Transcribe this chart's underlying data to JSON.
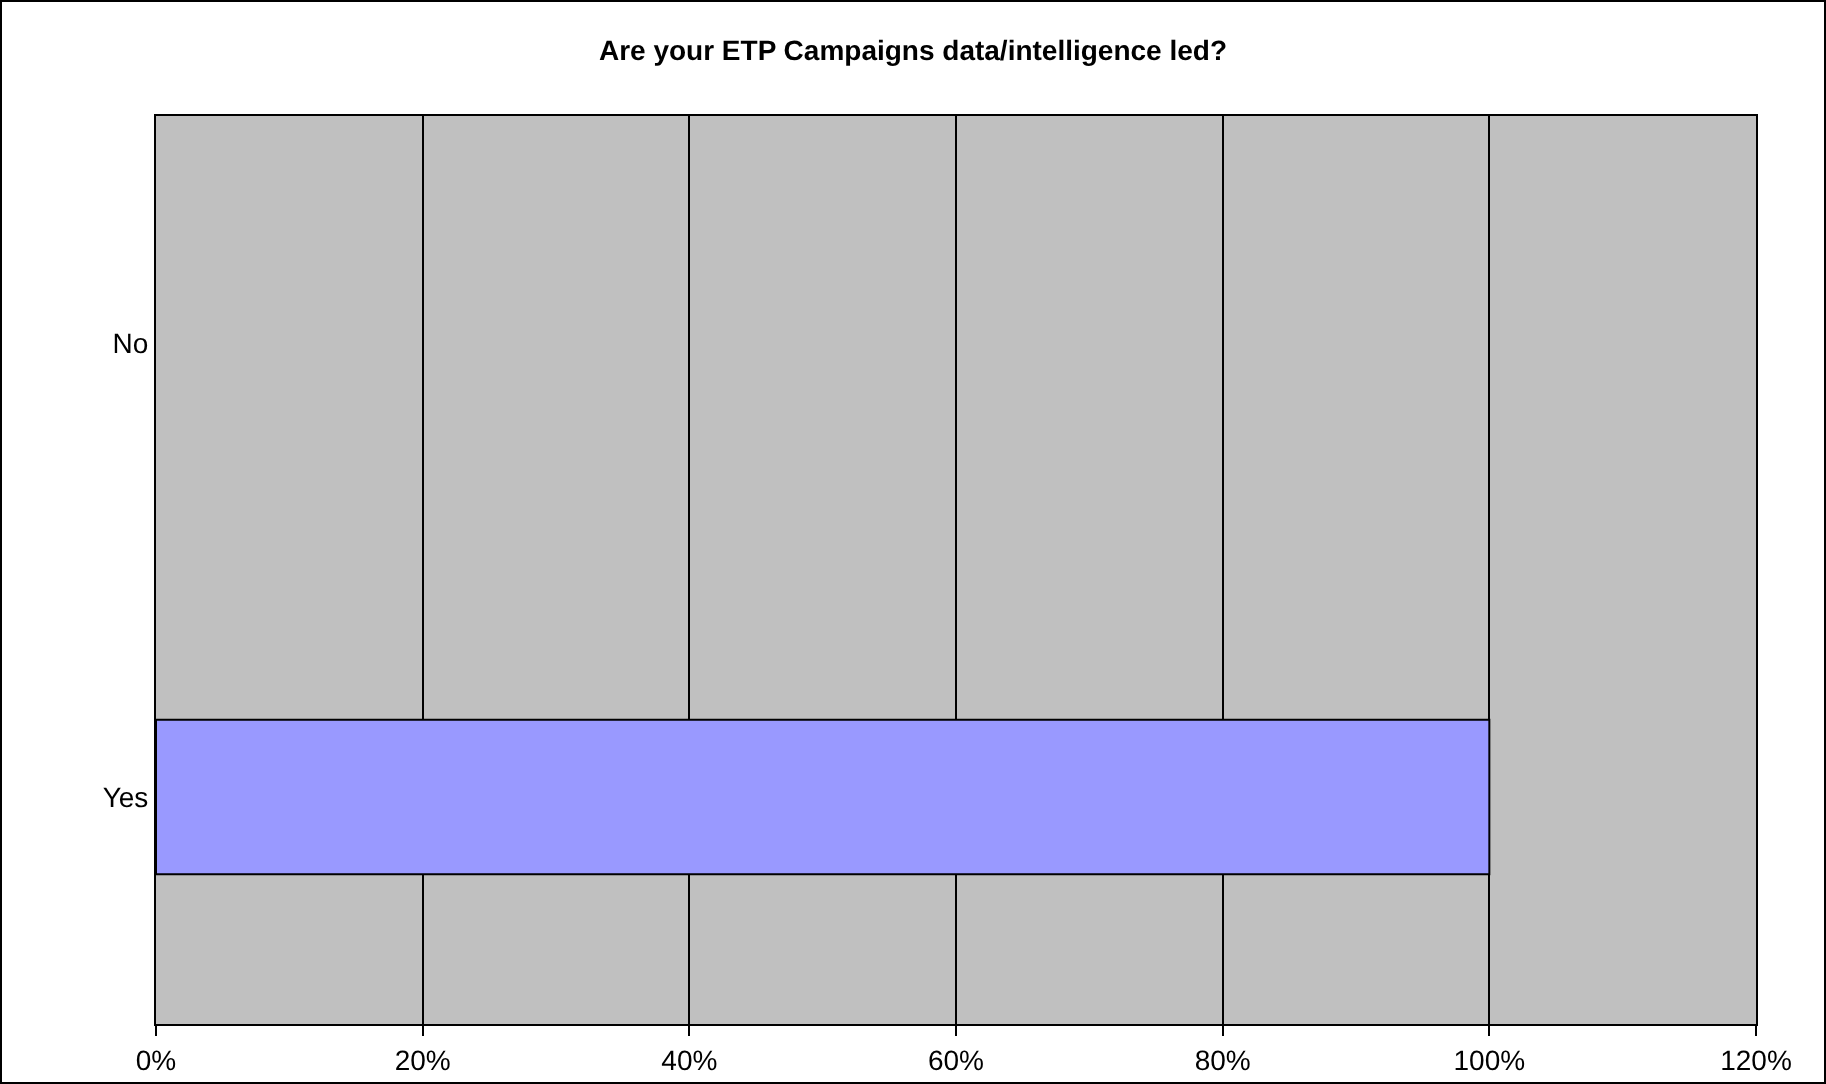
{
  "chart_data": {
    "type": "bar",
    "orientation": "horizontal",
    "title": "Are your ETP Campaigns data/intelligence led?",
    "categories": [
      "No",
      "Yes"
    ],
    "values": [
      0,
      100
    ],
    "color": "#9999ff",
    "xlim": [
      0,
      120
    ],
    "xticks": [
      {
        "value": 0,
        "label": "0%"
      },
      {
        "value": 20,
        "label": "20%"
      },
      {
        "value": 40,
        "label": "40%"
      },
      {
        "value": 60,
        "label": "60%"
      },
      {
        "value": 80,
        "label": "80%"
      },
      {
        "value": 100,
        "label": "100%"
      },
      {
        "value": 120,
        "label": "120%"
      }
    ],
    "grid": "x",
    "legend": false
  }
}
